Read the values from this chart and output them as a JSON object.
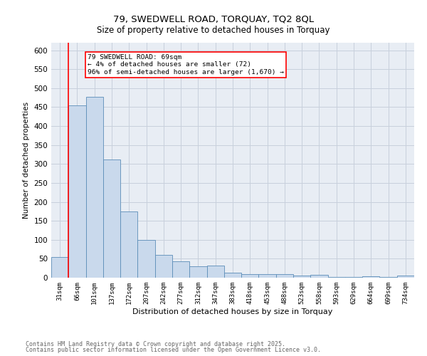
{
  "title": "79, SWEDWELL ROAD, TORQUAY, TQ2 8QL",
  "subtitle": "Size of property relative to detached houses in Torquay",
  "xlabel": "Distribution of detached houses by size in Torquay",
  "ylabel": "Number of detached properties",
  "bar_color": "#c9d9ec",
  "bar_edge_color": "#5b8db8",
  "grid_color": "#c8d0dc",
  "background_color": "#e8edf4",
  "red_line_x": 1,
  "annotation_text": "79 SWEDWELL ROAD: 69sqm\n← 4% of detached houses are smaller (72)\n96% of semi-detached houses are larger (1,670) →",
  "footer1": "Contains HM Land Registry data © Crown copyright and database right 2025.",
  "footer2": "Contains public sector information licensed under the Open Government Licence v3.0.",
  "categories": [
    "31sqm",
    "66sqm",
    "101sqm",
    "137sqm",
    "172sqm",
    "207sqm",
    "242sqm",
    "277sqm",
    "312sqm",
    "347sqm",
    "383sqm",
    "418sqm",
    "453sqm",
    "488sqm",
    "523sqm",
    "558sqm",
    "593sqm",
    "629sqm",
    "664sqm",
    "699sqm",
    "734sqm"
  ],
  "values": [
    55,
    455,
    478,
    312,
    175,
    100,
    60,
    43,
    30,
    32,
    14,
    9,
    10,
    9,
    5,
    8,
    1,
    1,
    4,
    1,
    5
  ],
  "ylim": [
    0,
    620
  ],
  "yticks": [
    0,
    50,
    100,
    150,
    200,
    250,
    300,
    350,
    400,
    450,
    500,
    550,
    600
  ]
}
